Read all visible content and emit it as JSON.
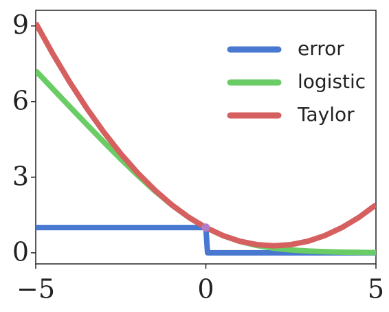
{
  "chart_data": {
    "type": "line",
    "series": [
      {
        "name": "error",
        "color": "#4878cf",
        "x": [
          -5,
          0,
          0.05,
          5
        ],
        "values": [
          1,
          1,
          0,
          0
        ]
      },
      {
        "name": "logistic",
        "color": "#6acc65",
        "x": [
          -5,
          -4.5,
          -4,
          -3.5,
          -3,
          -2.5,
          -2,
          -1.5,
          -1,
          -0.5,
          0,
          0.5,
          1,
          1.5,
          2,
          2.5,
          3,
          3.5,
          4,
          4.5,
          5
        ],
        "values": [
          7.223,
          6.508,
          5.797,
          5.092,
          4.398,
          3.721,
          3.069,
          2.455,
          1.895,
          1.405,
          1,
          0.684,
          0.452,
          0.291,
          0.183,
          0.114,
          0.07,
          0.043,
          0.026,
          0.016,
          0.01
        ]
      },
      {
        "name": "Taylor",
        "color": "#d65f5f",
        "x": [
          -5,
          -4.5,
          -4,
          -3.5,
          -3,
          -2.5,
          -2,
          -1.5,
          -1,
          -0.5,
          0,
          0.5,
          1,
          1.5,
          2,
          2.5,
          3,
          3.5,
          4,
          4.5,
          5
        ],
        "values": [
          9.115,
          7.898,
          6.77,
          5.734,
          4.787,
          3.93,
          3.164,
          2.488,
          1.902,
          1.406,
          1,
          0.685,
          0.459,
          0.324,
          0.279,
          0.324,
          0.459,
          0.685,
          1.0,
          1.406,
          1.902
        ]
      }
    ],
    "marker": {
      "x": 0,
      "y": 1,
      "color": "#b47cc7"
    },
    "xlim": [
      -5,
      5
    ],
    "ylim": [
      -0.44,
      9.62
    ],
    "xticks": [
      {
        "value": -5,
        "label": "−5"
      },
      0,
      5
    ],
    "yticks": [
      0,
      3,
      6,
      9
    ],
    "legend": "upper right"
  }
}
